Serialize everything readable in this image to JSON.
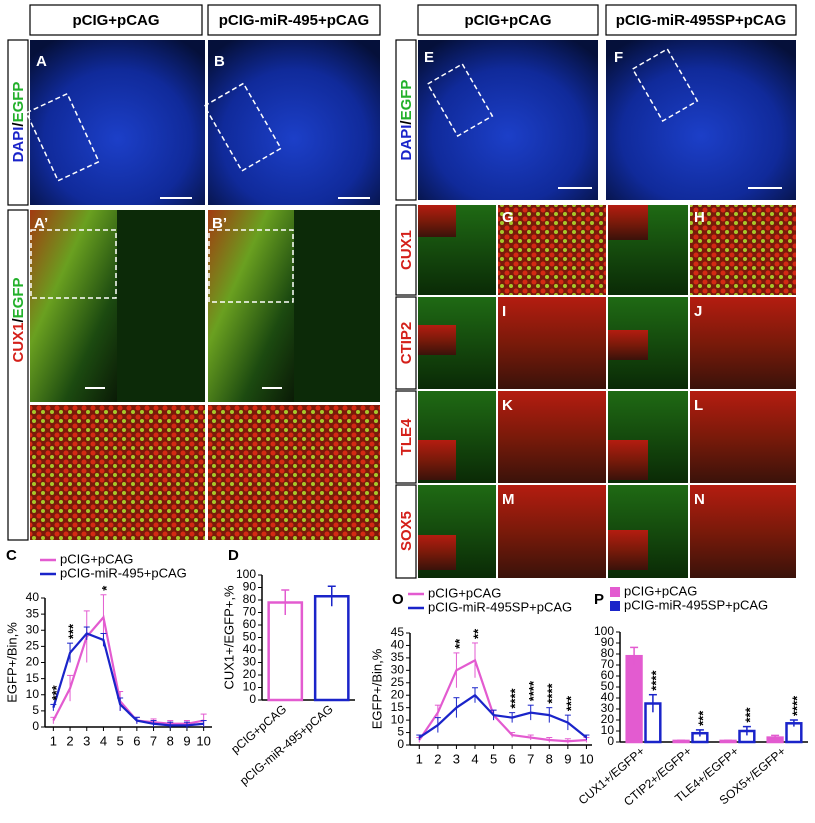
{
  "headers": [
    "pCIG+pCAG",
    "pCIG-miR-495+pCAG",
    "pCIG+pCAG",
    "pCIG-miR-495SP+pCAG"
  ],
  "side_labels": [
    {
      "parts": [
        "DAPI",
        "/",
        "EGFP"
      ]
    },
    {
      "parts": [
        "CUX1",
        "/",
        "EGFP"
      ]
    },
    {
      "parts": [
        "DAPI",
        "/",
        "EGFP"
      ]
    }
  ],
  "row_labels": [
    "CUX1",
    "CTIP2",
    "TLE4",
    "SOX5"
  ],
  "panel_labels": [
    "A",
    "B",
    "A’",
    "B’",
    "E",
    "F",
    "G",
    "H",
    "I",
    "J",
    "K",
    "L",
    "M",
    "N",
    "C",
    "D",
    "O",
    "P"
  ],
  "chart_data": [
    {
      "type": "line",
      "y_label": "EGFP+/Bin,%",
      "x": [
        1,
        2,
        3,
        4,
        5,
        6,
        7,
        8,
        9,
        10
      ],
      "xlim": [
        0.5,
        10.5
      ],
      "xticks": [
        1,
        2,
        3,
        4,
        5,
        6,
        7,
        8,
        9,
        10
      ],
      "ylim": [
        0,
        40
      ],
      "yticks": [
        0,
        5,
        10,
        15,
        20,
        25,
        30,
        35,
        40
      ],
      "series": [
        {
          "name": "pCIG+pCAG",
          "color": "#e35bd0",
          "values": [
            2,
            12,
            28,
            34,
            8,
            2,
            1.5,
            1,
            1,
            2
          ],
          "errors": [
            1,
            4,
            8,
            7,
            3,
            1,
            1,
            1,
            1,
            2
          ]
        },
        {
          "name": "pCIG-miR-495+pCAG",
          "color": "#1a24c9",
          "values": [
            6,
            23,
            29,
            27,
            7,
            2,
            1,
            0.5,
            0.5,
            1
          ],
          "errors": [
            1,
            3,
            2,
            2,
            2,
            1,
            1,
            1,
            1,
            1
          ]
        }
      ],
      "annotations": [
        {
          "x": 1,
          "text": "***"
        },
        {
          "x": 2,
          "text": "***"
        },
        {
          "x": 4,
          "text": "*"
        }
      ]
    },
    {
      "type": "bar",
      "y_label": "CUX1+/EGFP+,%",
      "categories": [
        "pCIG+pCAG",
        "pCIG-miR-495+pCAG"
      ],
      "values": [
        78,
        83
      ],
      "errors": [
        10,
        8
      ],
      "colors": [
        "#e35bd0",
        "#1a24c9"
      ],
      "ylim": [
        0,
        100
      ],
      "yticks": [
        0,
        10,
        20,
        30,
        40,
        50,
        60,
        70,
        80,
        90,
        100
      ]
    },
    {
      "type": "line",
      "y_label": "EGFP+/Bin,%",
      "x": [
        1,
        2,
        3,
        4,
        5,
        6,
        7,
        8,
        9,
        10
      ],
      "xlim": [
        0.5,
        10.3
      ],
      "xticks": [
        1,
        2,
        3,
        4,
        5,
        6,
        7,
        8,
        9,
        10
      ],
      "ylim": [
        0,
        45
      ],
      "yticks": [
        0,
        5,
        10,
        15,
        20,
        25,
        30,
        35,
        40,
        45
      ],
      "series": [
        {
          "name": "pCIG+pCAG",
          "color": "#e35bd0",
          "values": [
            2,
            13,
            30,
            34,
            12,
            4,
            3,
            2,
            1.5,
            2
          ],
          "errors": [
            1,
            3,
            7,
            7,
            2,
            1,
            1,
            1,
            1,
            1
          ]
        },
        {
          "name": "pCIG-miR-495SP+pCAG",
          "color": "#1a24c9",
          "values": [
            3,
            8,
            15,
            20,
            12,
            11,
            13,
            12,
            9,
            3
          ],
          "errors": [
            1,
            3,
            4,
            3,
            2,
            2,
            3,
            3,
            3,
            1
          ]
        }
      ],
      "annotations": [
        {
          "x": 3,
          "text": "**"
        },
        {
          "x": 4,
          "text": "**"
        },
        {
          "x": 6,
          "text": "****"
        },
        {
          "x": 7,
          "text": "****"
        },
        {
          "x": 8,
          "text": "****"
        },
        {
          "x": 9,
          "text": "***"
        }
      ]
    },
    {
      "type": "bar",
      "categories": [
        "CUX1+/EGFP+",
        "CTIP2+/EGFP+",
        "TLE4+/EGFP+",
        "SOX5+/EGFP+"
      ],
      "ylim": [
        0,
        100
      ],
      "yticks": [
        0,
        10,
        20,
        30,
        40,
        50,
        60,
        70,
        80,
        90,
        100
      ],
      "series": [
        {
          "name": "pCIG+pCAG",
          "color": "#e35bd0",
          "values": [
            78,
            1,
            1,
            4
          ],
          "errors": [
            8,
            0.5,
            0.5,
            2
          ]
        },
        {
          "name": "pCIG-miR-495SP+pCAG",
          "color": "#1a24c9",
          "values": [
            35,
            8,
            10,
            17
          ],
          "errors": [
            8,
            3,
            4,
            3
          ]
        }
      ],
      "annotations": [
        {
          "category": "CUX1+/EGFP+",
          "text": "****"
        },
        {
          "category": "CTIP2+/EGFP+",
          "text": "***"
        },
        {
          "category": "TLE4+/EGFP+",
          "text": "***"
        },
        {
          "category": "SOX5+/EGFP+",
          "text": "****"
        }
      ]
    }
  ]
}
